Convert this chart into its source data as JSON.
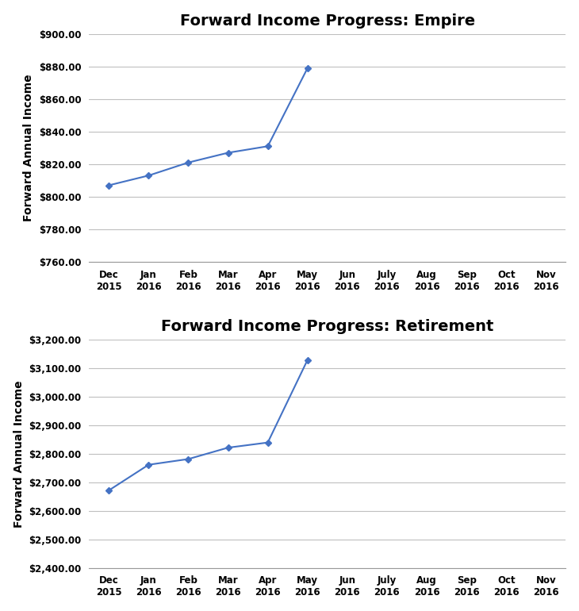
{
  "title1": "Forward Income Progress: Empire",
  "title2": "Forward Income Progress: Retirement",
  "ylabel": "Forward Annual Income",
  "x_labels": [
    "Dec\n2015",
    "Jan\n2016",
    "Feb\n2016",
    "Mar\n2016",
    "Apr\n2016",
    "May\n2016",
    "Jun\n2016",
    "July\n2016",
    "Aug\n2016",
    "Sep\n2016",
    "Oct\n2016",
    "Nov\n2016"
  ],
  "empire_x": [
    0,
    1,
    2,
    3,
    4,
    5
  ],
  "empire_y": [
    807,
    813,
    821,
    827,
    831,
    879
  ],
  "empire_ylim": [
    760,
    900
  ],
  "empire_yticks": [
    760,
    780,
    800,
    820,
    840,
    860,
    880,
    900
  ],
  "retirement_x": [
    0,
    1,
    2,
    3,
    4,
    5
  ],
  "retirement_y": [
    2672,
    2762,
    2782,
    2822,
    2840,
    3130
  ],
  "retirement_ylim": [
    2400,
    3200
  ],
  "retirement_yticks": [
    2400,
    2500,
    2600,
    2700,
    2800,
    2900,
    3000,
    3100,
    3200
  ],
  "line_color": "#4472C4",
  "marker": "D",
  "marker_size": 4,
  "line_width": 1.5,
  "title_fontsize": 14,
  "title_fontweight": "bold",
  "axis_label_fontsize": 10,
  "tick_fontsize": 8.5,
  "background_color": "#ffffff",
  "grid_color": "#bfbfbf",
  "fig_width": 7.3,
  "fig_height": 7.7,
  "dpi": 100
}
